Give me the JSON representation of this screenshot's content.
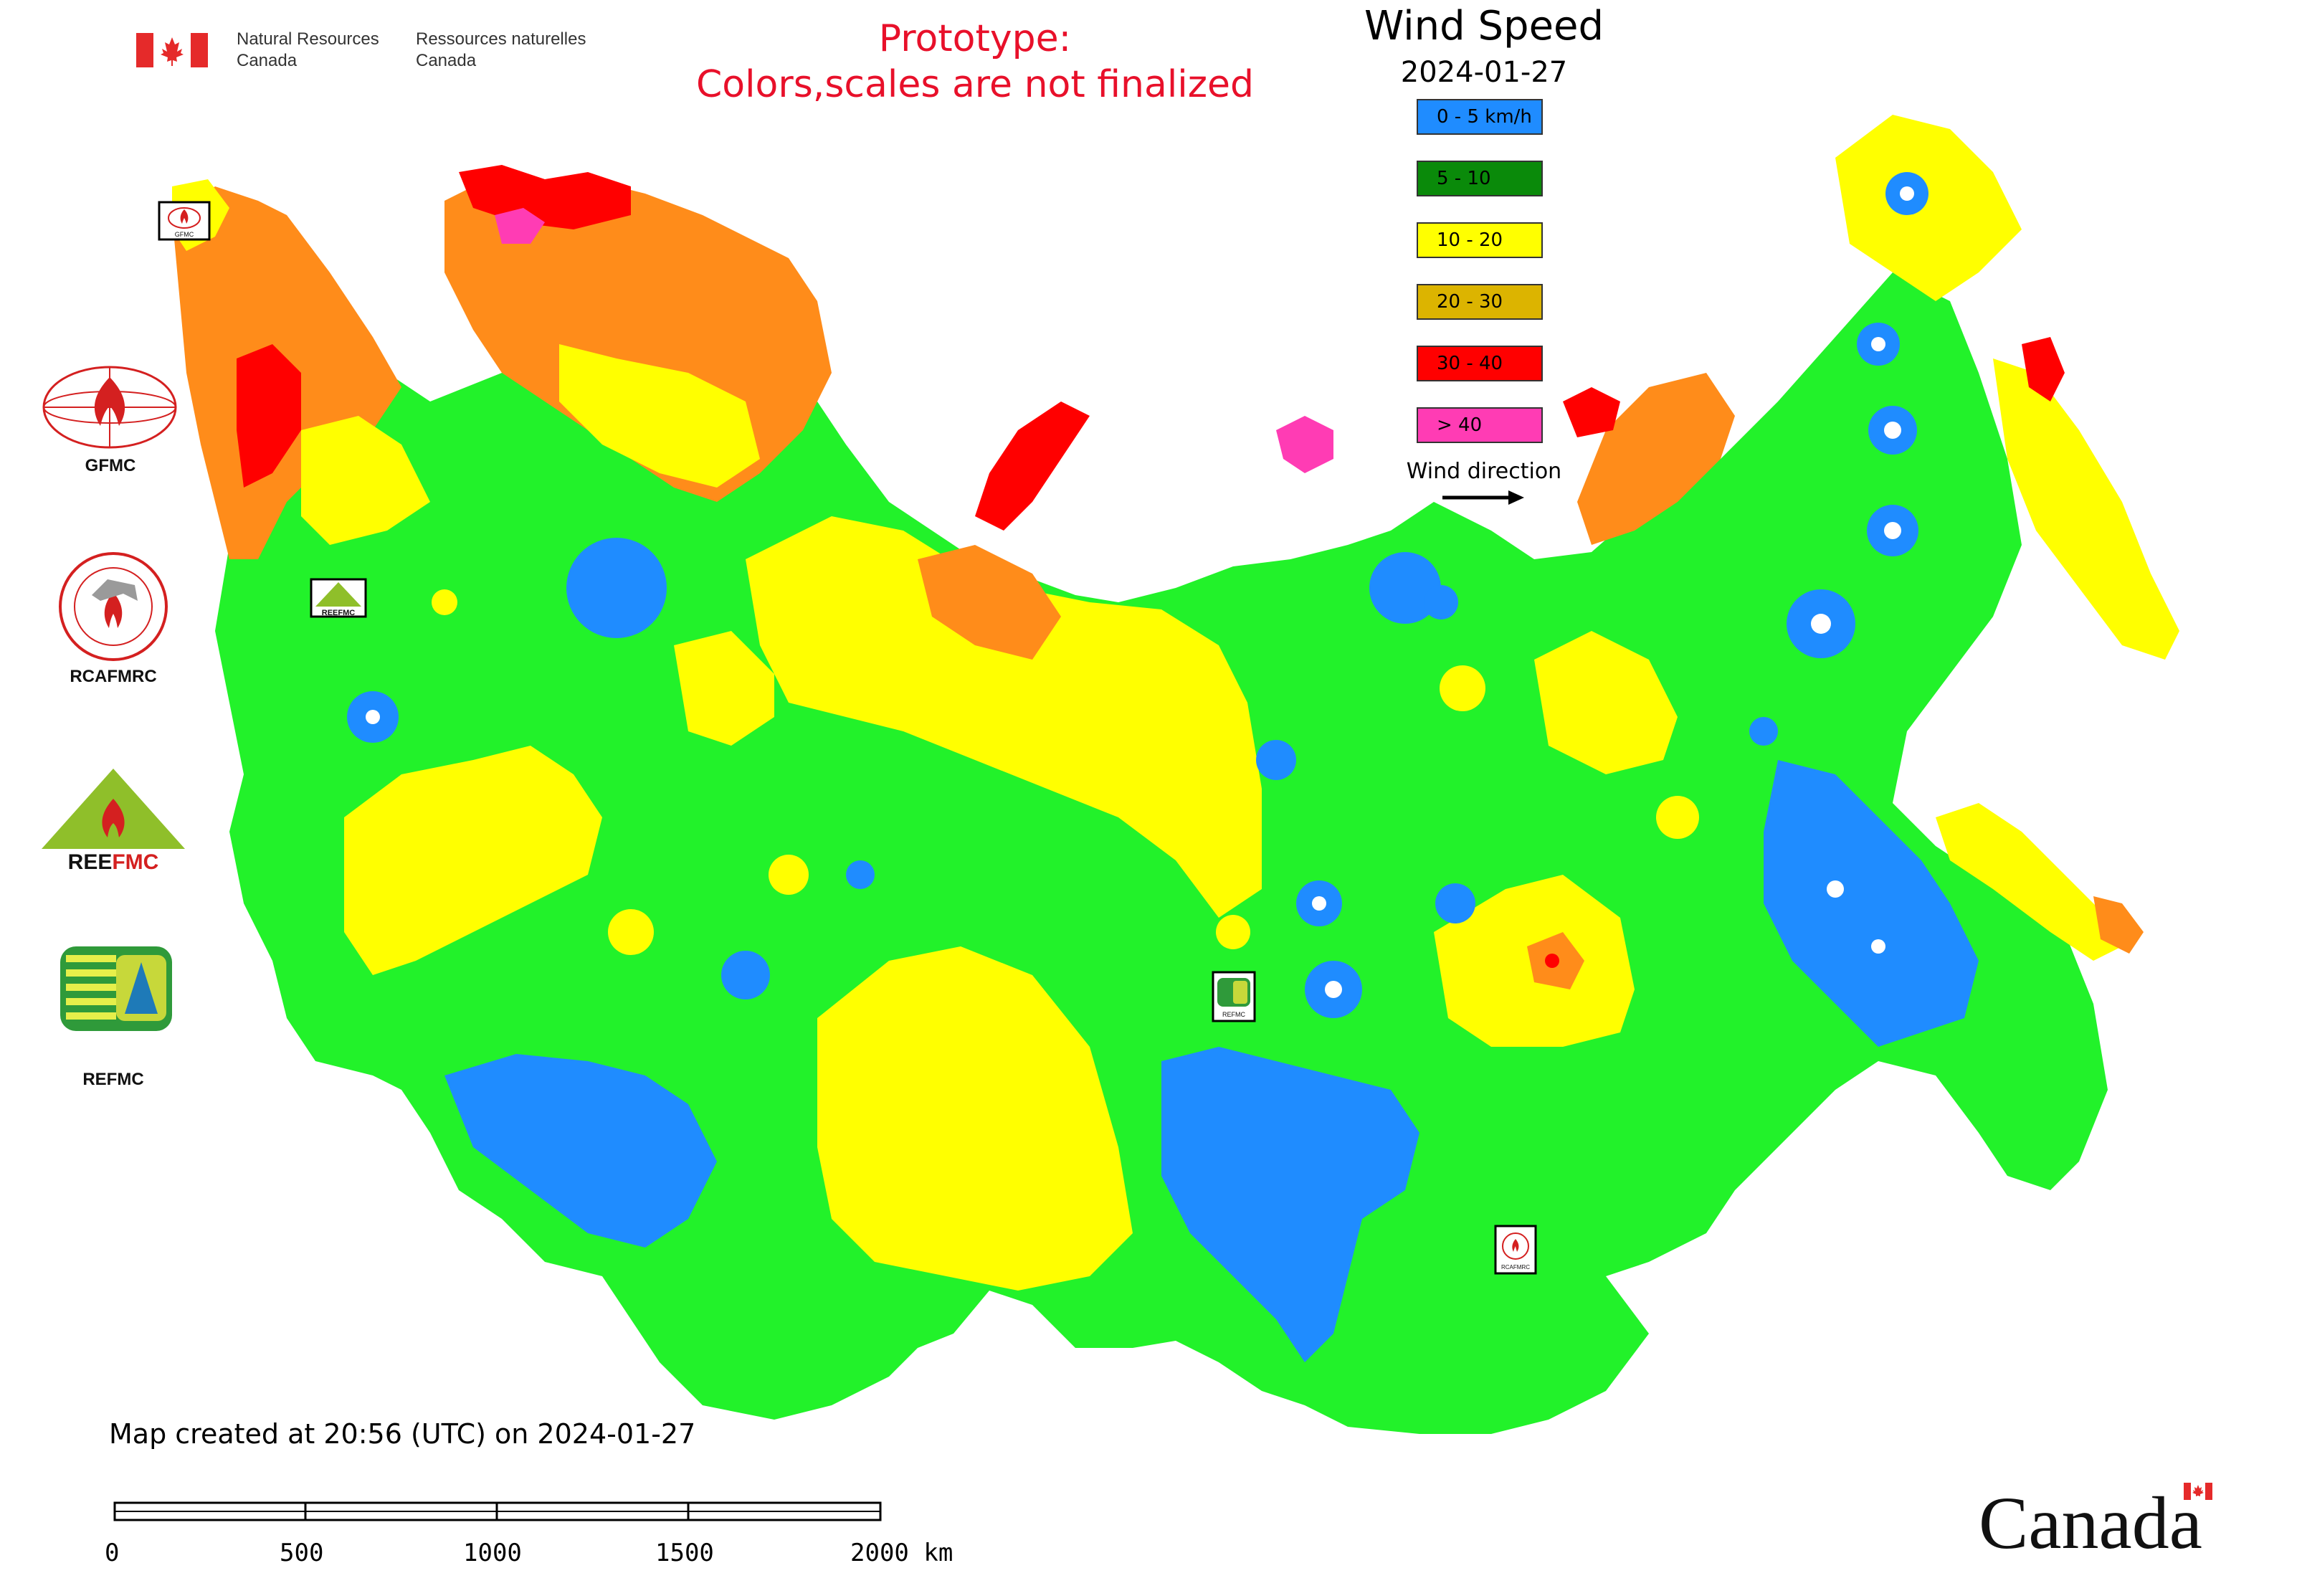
{
  "header": {
    "org_en_line1": "Natural Resources",
    "org_en_line2": "Canada",
    "org_fr_line1": "Ressources naturelles",
    "org_fr_line2": "Canada"
  },
  "notice": {
    "line1": "Prototype:",
    "line2": "Colors,scales are not finalized"
  },
  "legend": {
    "title": "Wind Speed",
    "date": "2024-01-27",
    "classes": [
      {
        "label": "0 - 5 km/h",
        "color": "#1f8cff"
      },
      {
        "label": "5 - 10",
        "color": "#0a8a0a"
      },
      {
        "label": "10 - 20",
        "color": "#ffff00"
      },
      {
        "label": "20 - 30",
        "color": "#dcb400"
      },
      {
        "label": "30 - 40",
        "color": "#ff0000"
      },
      {
        "label": "> 40",
        "color": "#ff3cb4"
      }
    ],
    "wind_direction_label": "Wind direction"
  },
  "map_colors": {
    "calm": "#1f8cff",
    "light": "#22f22a",
    "moderate": "#ffff00",
    "fresh": "#ff8c1a",
    "strong": "#ff0000",
    "gale": "#ff3cb4"
  },
  "side_logos": [
    {
      "label": "GFMC"
    },
    {
      "label": "RCAFMRC"
    },
    {
      "label": "REEFMC"
    },
    {
      "label": "REFMC"
    }
  ],
  "map_badges": [
    {
      "label": "GFMC"
    },
    {
      "label": "REEFMC"
    },
    {
      "label": "REFMC"
    },
    {
      "label": "RCAFMRC"
    }
  ],
  "footer": {
    "created": "Map created at 20:56 (UTC) on 2024-01-27",
    "scale_ticks": [
      "0",
      "500",
      "1000",
      "1500",
      "2000 km"
    ],
    "wordmark": "Canada"
  }
}
